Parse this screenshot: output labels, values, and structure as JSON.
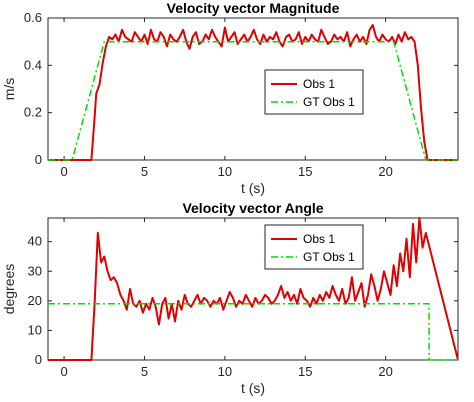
{
  "chart_data": [
    {
      "type": "line",
      "title": "Velocity vector Magnitude",
      "xlabel": "t (s)",
      "ylabel": "m/s",
      "xlim": [
        -1,
        24.5
      ],
      "ylim": [
        0,
        0.6
      ],
      "xticks": [
        0,
        5,
        10,
        15,
        20
      ],
      "yticks": [
        0,
        0.2,
        0.4,
        0.6
      ],
      "xtick_labels": [
        "0",
        "5",
        "10",
        "15",
        "20"
      ],
      "ytick_labels": [
        "0",
        "0.2",
        "0.4",
        "0.6"
      ],
      "legend_position": "middle-right",
      "grid": false,
      "series": [
        {
          "name": "Obs 1",
          "color": "#e00000",
          "style": "solid",
          "x": [
            -1,
            1.7,
            1.9,
            2.0,
            2.2,
            2.4,
            2.6,
            2.8,
            3.0,
            3.2,
            3.4,
            3.6,
            3.8,
            4.0,
            4.2,
            4.4,
            4.6,
            4.8,
            5.0,
            5.2,
            5.4,
            5.6,
            5.8,
            6.0,
            6.2,
            6.4,
            6.6,
            6.8,
            7.0,
            7.2,
            7.4,
            7.6,
            7.8,
            8.0,
            8.2,
            8.4,
            8.6,
            8.8,
            9.0,
            9.2,
            9.4,
            9.6,
            9.8,
            10.0,
            10.2,
            10.4,
            10.6,
            10.8,
            11.0,
            11.2,
            11.4,
            11.6,
            11.8,
            12.0,
            12.2,
            12.4,
            12.6,
            12.8,
            13.0,
            13.2,
            13.4,
            13.6,
            13.8,
            14.0,
            14.2,
            14.4,
            14.6,
            14.8,
            15.0,
            15.2,
            15.4,
            15.6,
            15.8,
            16.0,
            16.2,
            16.4,
            16.6,
            16.8,
            17.0,
            17.2,
            17.4,
            17.6,
            17.8,
            18.0,
            18.2,
            18.4,
            18.6,
            18.8,
            19.0,
            19.2,
            19.4,
            19.6,
            19.8,
            20.0,
            20.2,
            20.4,
            20.6,
            20.8,
            21.0,
            21.2,
            21.4,
            21.6,
            21.8,
            22.0,
            22.2,
            22.4,
            22.6,
            22.8,
            24.5
          ],
          "y": [
            0,
            0,
            0.18,
            0.28,
            0.32,
            0.41,
            0.48,
            0.52,
            0.51,
            0.53,
            0.5,
            0.55,
            0.52,
            0.51,
            0.5,
            0.54,
            0.52,
            0.5,
            0.53,
            0.49,
            0.55,
            0.51,
            0.5,
            0.54,
            0.52,
            0.48,
            0.53,
            0.51,
            0.5,
            0.52,
            0.55,
            0.5,
            0.47,
            0.52,
            0.54,
            0.49,
            0.5,
            0.53,
            0.51,
            0.55,
            0.52,
            0.5,
            0.48,
            0.56,
            0.5,
            0.52,
            0.54,
            0.49,
            0.51,
            0.53,
            0.5,
            0.52,
            0.55,
            0.51,
            0.49,
            0.53,
            0.5,
            0.52,
            0.51,
            0.54,
            0.5,
            0.48,
            0.52,
            0.53,
            0.5,
            0.51,
            0.54,
            0.49,
            0.52,
            0.5,
            0.53,
            0.51,
            0.5,
            0.55,
            0.52,
            0.49,
            0.5,
            0.53,
            0.51,
            0.52,
            0.5,
            0.54,
            0.48,
            0.51,
            0.53,
            0.5,
            0.52,
            0.49,
            0.55,
            0.57,
            0.52,
            0.5,
            0.53,
            0.51,
            0.5,
            0.52,
            0.49,
            0.53,
            0.5,
            0.54,
            0.51,
            0.52,
            0.5,
            0.4,
            0.22,
            0.08,
            0,
            0,
            0
          ]
        },
        {
          "name": "GT Obs 1",
          "color": "#00dd00",
          "style": "dash-dot",
          "x": [
            -1,
            0.5,
            2.5,
            20.5,
            22.5,
            24.5
          ],
          "y": [
            0,
            0,
            0.5,
            0.5,
            0,
            0
          ]
        }
      ]
    },
    {
      "type": "line",
      "title": "Velocity vector Angle",
      "xlabel": "t (s)",
      "ylabel": "degrees",
      "xlim": [
        -1,
        24.5
      ],
      "ylim": [
        0,
        48
      ],
      "xticks": [
        0,
        5,
        10,
        15,
        20
      ],
      "yticks": [
        0,
        10,
        20,
        30,
        40
      ],
      "xtick_labels": [
        "0",
        "5",
        "10",
        "15",
        "20"
      ],
      "ytick_labels": [
        "0",
        "10",
        "20",
        "30",
        "40"
      ],
      "legend_position": "top-right",
      "grid": false,
      "series": [
        {
          "name": "Obs 1",
          "color": "#e00000",
          "style": "solid",
          "x": [
            -1,
            1.7,
            1.9,
            2.1,
            2.3,
            2.5,
            2.7,
            2.9,
            3.1,
            3.3,
            3.5,
            3.7,
            3.9,
            4.1,
            4.3,
            4.5,
            4.7,
            4.9,
            5.1,
            5.3,
            5.5,
            5.7,
            5.9,
            6.1,
            6.3,
            6.5,
            6.7,
            6.9,
            7.1,
            7.3,
            7.5,
            7.7,
            7.9,
            8.1,
            8.3,
            8.5,
            8.7,
            8.9,
            9.1,
            9.3,
            9.5,
            9.7,
            9.9,
            10.1,
            10.3,
            10.5,
            10.7,
            10.9,
            11.1,
            11.3,
            11.5,
            11.7,
            11.9,
            12.1,
            12.3,
            12.5,
            12.7,
            12.9,
            13.1,
            13.3,
            13.5,
            13.7,
            13.9,
            14.1,
            14.3,
            14.5,
            14.7,
            14.9,
            15.1,
            15.3,
            15.5,
            15.7,
            15.9,
            16.1,
            16.3,
            16.5,
            16.7,
            16.9,
            17.1,
            17.3,
            17.5,
            17.7,
            17.9,
            18.1,
            18.3,
            18.5,
            18.7,
            18.9,
            19.1,
            19.3,
            19.5,
            19.7,
            19.9,
            20.1,
            20.3,
            20.5,
            20.7,
            20.9,
            21.1,
            21.3,
            21.5,
            21.7,
            21.9,
            22.1,
            22.3,
            22.5,
            24.5
          ],
          "y": [
            0,
            0,
            19,
            43,
            33,
            35,
            30,
            27,
            28,
            26,
            22,
            20,
            17,
            24,
            19,
            18,
            20,
            16,
            19,
            17,
            21,
            18,
            12,
            19,
            21,
            14,
            19,
            13,
            20,
            17,
            22,
            19,
            18,
            20,
            22,
            19,
            21,
            20,
            18,
            20,
            19,
            21,
            17,
            20,
            23,
            21,
            18,
            20,
            19,
            22,
            20,
            18,
            21,
            19,
            20,
            22,
            21,
            19,
            20,
            22,
            25,
            21,
            23,
            20,
            22,
            19,
            24,
            21,
            20,
            18,
            21,
            19,
            22,
            20,
            23,
            21,
            25,
            22,
            20,
            24,
            19,
            21,
            28,
            20,
            23,
            26,
            18,
            22,
            29,
            25,
            20,
            24,
            30,
            26,
            22,
            32,
            25,
            36,
            30,
            41,
            28,
            46,
            33,
            48,
            38,
            43,
            0
          ]
        },
        {
          "name": "GT Obs 1",
          "color": "#00dd00",
          "style": "dash-dot",
          "x": [
            -1,
            22.7,
            22.7,
            24.5
          ],
          "y": [
            19,
            19,
            0,
            0
          ]
        }
      ]
    }
  ]
}
